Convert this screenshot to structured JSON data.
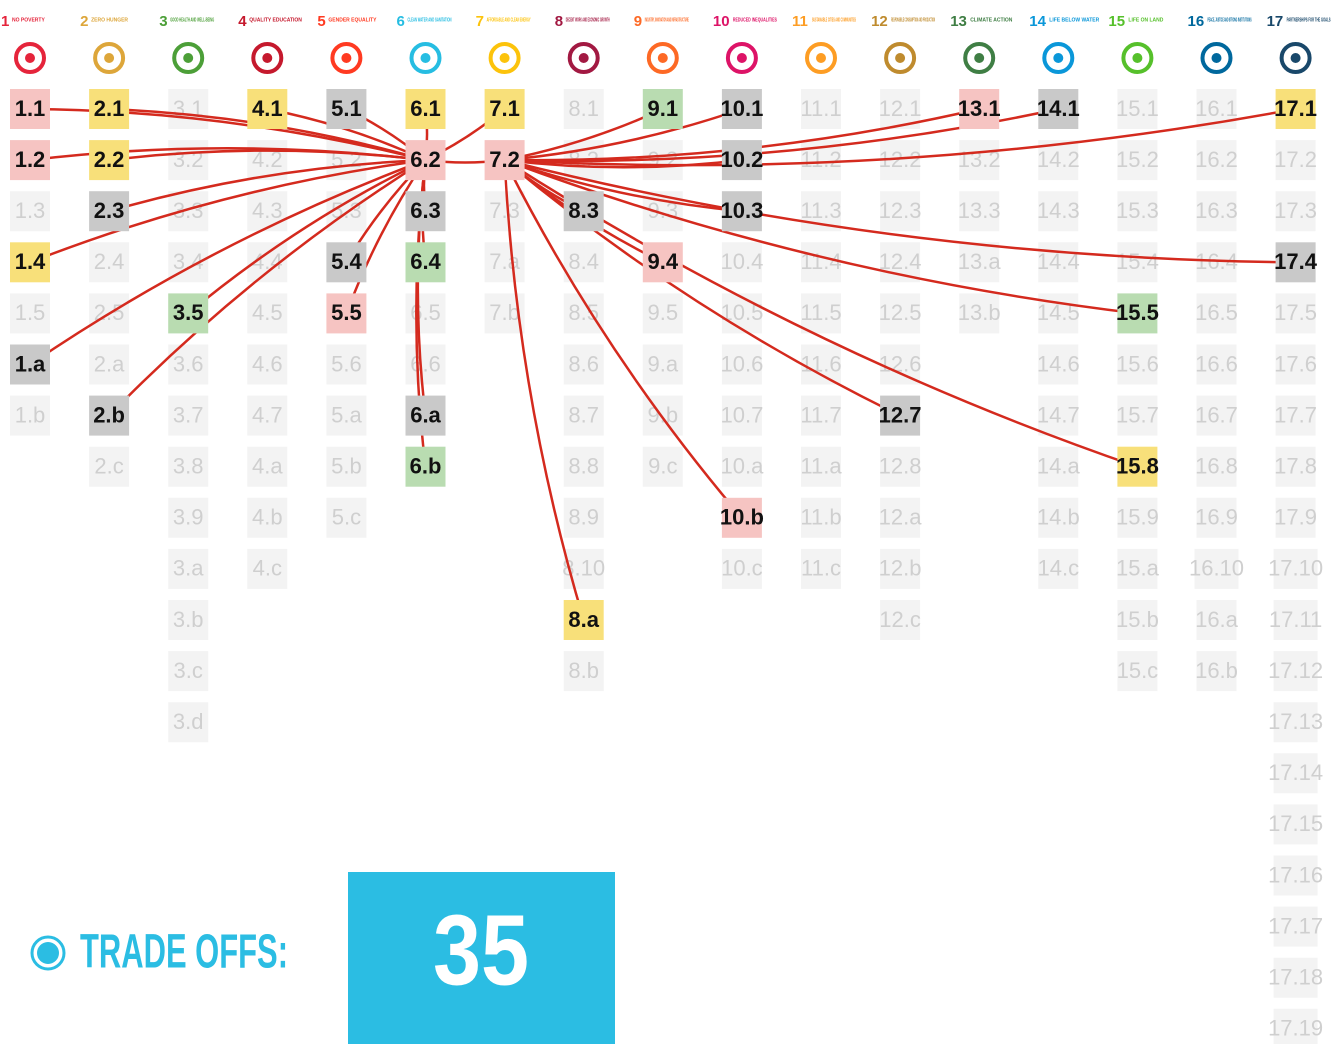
{
  "goals": [
    {
      "number": "1",
      "name": "NO POVERTY",
      "color": "#e5243b",
      "targets": [
        {
          "label": "1.1",
          "state": "red"
        },
        {
          "label": "1.2",
          "state": "red"
        },
        {
          "label": "1.3",
          "state": "faded"
        },
        {
          "label": "1.4",
          "state": "yellow"
        },
        {
          "label": "1.5",
          "state": "faded"
        },
        {
          "label": "1.a",
          "state": "gray"
        },
        {
          "label": "1.b",
          "state": "faded"
        }
      ]
    },
    {
      "number": "2",
      "name": "ZERO HUNGER",
      "color": "#dda63a",
      "targets": [
        {
          "label": "2.1",
          "state": "yellow"
        },
        {
          "label": "2.2",
          "state": "yellow"
        },
        {
          "label": "2.3",
          "state": "gray"
        },
        {
          "label": "2.4",
          "state": "faded"
        },
        {
          "label": "2.5",
          "state": "faded"
        },
        {
          "label": "2.a",
          "state": "faded"
        },
        {
          "label": "2.b",
          "state": "gray"
        },
        {
          "label": "2.c",
          "state": "faded"
        }
      ]
    },
    {
      "number": "3",
      "name": "GOOD HEALTH AND WELL-BEING",
      "color": "#4c9f38",
      "targets": [
        {
          "label": "3.1",
          "state": "faded"
        },
        {
          "label": "3.2",
          "state": "faded"
        },
        {
          "label": "3.3",
          "state": "faded"
        },
        {
          "label": "3.4",
          "state": "faded"
        },
        {
          "label": "3.5",
          "state": "green"
        },
        {
          "label": "3.6",
          "state": "faded"
        },
        {
          "label": "3.7",
          "state": "faded"
        },
        {
          "label": "3.8",
          "state": "faded"
        },
        {
          "label": "3.9",
          "state": "faded"
        },
        {
          "label": "3.a",
          "state": "faded"
        },
        {
          "label": "3.b",
          "state": "faded"
        },
        {
          "label": "3.c",
          "state": "faded"
        },
        {
          "label": "3.d",
          "state": "faded"
        }
      ]
    },
    {
      "number": "4",
      "name": "QUALITY EDUCATION",
      "color": "#c5192d",
      "targets": [
        {
          "label": "4.1",
          "state": "yellow"
        },
        {
          "label": "4.2",
          "state": "faded"
        },
        {
          "label": "4.3",
          "state": "faded"
        },
        {
          "label": "4.4",
          "state": "faded"
        },
        {
          "label": "4.5",
          "state": "faded"
        },
        {
          "label": "4.6",
          "state": "faded"
        },
        {
          "label": "4.7",
          "state": "faded"
        },
        {
          "label": "4.a",
          "state": "faded"
        },
        {
          "label": "4.b",
          "state": "faded"
        },
        {
          "label": "4.c",
          "state": "faded"
        }
      ]
    },
    {
      "number": "5",
      "name": "GENDER EQUALITY",
      "color": "#ff3a21",
      "targets": [
        {
          "label": "5.1",
          "state": "gray"
        },
        {
          "label": "5.2",
          "state": "faded"
        },
        {
          "label": "5.3",
          "state": "faded"
        },
        {
          "label": "5.4",
          "state": "gray"
        },
        {
          "label": "5.5",
          "state": "red"
        },
        {
          "label": "5.6",
          "state": "faded"
        },
        {
          "label": "5.a",
          "state": "faded"
        },
        {
          "label": "5.b",
          "state": "faded"
        },
        {
          "label": "5.c",
          "state": "faded"
        }
      ]
    },
    {
      "number": "6",
      "name": "CLEAN WATER AND SANITATION",
      "color": "#26bde2",
      "targets": [
        {
          "label": "6.1",
          "state": "yellow"
        },
        {
          "label": "6.2",
          "state": "red"
        },
        {
          "label": "6.3",
          "state": "gray"
        },
        {
          "label": "6.4",
          "state": "green"
        },
        {
          "label": "6.5",
          "state": "faded"
        },
        {
          "label": "6.6",
          "state": "faded"
        },
        {
          "label": "6.a",
          "state": "gray"
        },
        {
          "label": "6.b",
          "state": "green"
        }
      ]
    },
    {
      "number": "7",
      "name": "AFFORDABLE AND CLEAN ENERGY",
      "color": "#fcc30b",
      "targets": [
        {
          "label": "7.1",
          "state": "yellow"
        },
        {
          "label": "7.2",
          "state": "red"
        },
        {
          "label": "7.3",
          "state": "faded"
        },
        {
          "label": "7.a",
          "state": "faded"
        },
        {
          "label": "7.b",
          "state": "faded"
        }
      ]
    },
    {
      "number": "8",
      "name": "DECENT WORK AND ECONOMIC GROWTH",
      "color": "#a21942",
      "targets": [
        {
          "label": "8.1",
          "state": "faded"
        },
        {
          "label": "8.2",
          "state": "faded"
        },
        {
          "label": "8.3",
          "state": "gray"
        },
        {
          "label": "8.4",
          "state": "faded"
        },
        {
          "label": "8.5",
          "state": "faded"
        },
        {
          "label": "8.6",
          "state": "faded"
        },
        {
          "label": "8.7",
          "state": "faded"
        },
        {
          "label": "8.8",
          "state": "faded"
        },
        {
          "label": "8.9",
          "state": "faded"
        },
        {
          "label": "8.10",
          "state": "faded"
        },
        {
          "label": "8.a",
          "state": "yellow"
        },
        {
          "label": "8.b",
          "state": "faded"
        }
      ]
    },
    {
      "number": "9",
      "name": "INDUSTRY, INNOVATION AND INFRASTRUCTURE",
      "color": "#fd6925",
      "targets": [
        {
          "label": "9.1",
          "state": "green"
        },
        {
          "label": "9.2",
          "state": "faded"
        },
        {
          "label": "9.3",
          "state": "faded"
        },
        {
          "label": "9.4",
          "state": "red"
        },
        {
          "label": "9.5",
          "state": "faded"
        },
        {
          "label": "9.a",
          "state": "faded"
        },
        {
          "label": "9.b",
          "state": "faded"
        },
        {
          "label": "9.c",
          "state": "faded"
        }
      ]
    },
    {
      "number": "10",
      "name": "REDUCED INEQUALITIES",
      "color": "#dd1367",
      "targets": [
        {
          "label": "10.1",
          "state": "gray"
        },
        {
          "label": "10.2",
          "state": "gray"
        },
        {
          "label": "10.3",
          "state": "gray"
        },
        {
          "label": "10.4",
          "state": "faded"
        },
        {
          "label": "10.5",
          "state": "faded"
        },
        {
          "label": "10.6",
          "state": "faded"
        },
        {
          "label": "10.7",
          "state": "faded"
        },
        {
          "label": "10.a",
          "state": "faded"
        },
        {
          "label": "10.b",
          "state": "red"
        },
        {
          "label": "10.c",
          "state": "faded"
        }
      ]
    },
    {
      "number": "11",
      "name": "SUSTAINABLE CITIES AND COMMUNITIES",
      "color": "#fd9d24",
      "targets": [
        {
          "label": "11.1",
          "state": "faded"
        },
        {
          "label": "11.2",
          "state": "faded"
        },
        {
          "label": "11.3",
          "state": "faded"
        },
        {
          "label": "11.4",
          "state": "faded"
        },
        {
          "label": "11.5",
          "state": "faded"
        },
        {
          "label": "11.6",
          "state": "faded"
        },
        {
          "label": "11.7",
          "state": "faded"
        },
        {
          "label": "11.a",
          "state": "faded"
        },
        {
          "label": "11.b",
          "state": "faded"
        },
        {
          "label": "11.c",
          "state": "faded"
        }
      ]
    },
    {
      "number": "12",
      "name": "RESPONSIBLE CONSUMPTION AND PRODUCTION",
      "color": "#bf8b2e",
      "targets": [
        {
          "label": "12.1",
          "state": "faded"
        },
        {
          "label": "12.2",
          "state": "faded"
        },
        {
          "label": "12.3",
          "state": "faded"
        },
        {
          "label": "12.4",
          "state": "faded"
        },
        {
          "label": "12.5",
          "state": "faded"
        },
        {
          "label": "12.6",
          "state": "faded"
        },
        {
          "label": "12.7",
          "state": "gray"
        },
        {
          "label": "12.8",
          "state": "faded"
        },
        {
          "label": "12.a",
          "state": "faded"
        },
        {
          "label": "12.b",
          "state": "faded"
        },
        {
          "label": "12.c",
          "state": "faded"
        }
      ]
    },
    {
      "number": "13",
      "name": "CLIMATE ACTION",
      "color": "#3f7e44",
      "targets": [
        {
          "label": "13.1",
          "state": "red"
        },
        {
          "label": "13.2",
          "state": "faded"
        },
        {
          "label": "13.3",
          "state": "faded"
        },
        {
          "label": "13.a",
          "state": "faded"
        },
        {
          "label": "13.b",
          "state": "faded"
        }
      ]
    },
    {
      "number": "14",
      "name": "LIFE BELOW WATER",
      "color": "#0a97d9",
      "targets": [
        {
          "label": "14.1",
          "state": "gray"
        },
        {
          "label": "14.2",
          "state": "faded"
        },
        {
          "label": "14.3",
          "state": "faded"
        },
        {
          "label": "14.4",
          "state": "faded"
        },
        {
          "label": "14.5",
          "state": "faded"
        },
        {
          "label": "14.6",
          "state": "faded"
        },
        {
          "label": "14.7",
          "state": "faded"
        },
        {
          "label": "14.a",
          "state": "faded"
        },
        {
          "label": "14.b",
          "state": "faded"
        },
        {
          "label": "14.c",
          "state": "faded"
        }
      ]
    },
    {
      "number": "15",
      "name": "LIFE ON LAND",
      "color": "#56c02b",
      "targets": [
        {
          "label": "15.1",
          "state": "faded"
        },
        {
          "label": "15.2",
          "state": "faded"
        },
        {
          "label": "15.3",
          "state": "faded"
        },
        {
          "label": "15.4",
          "state": "faded"
        },
        {
          "label": "15.5",
          "state": "green"
        },
        {
          "label": "15.6",
          "state": "faded"
        },
        {
          "label": "15.7",
          "state": "faded"
        },
        {
          "label": "15.8",
          "state": "yellow"
        },
        {
          "label": "15.9",
          "state": "faded"
        },
        {
          "label": "15.a",
          "state": "faded"
        },
        {
          "label": "15.b",
          "state": "faded"
        },
        {
          "label": "15.c",
          "state": "faded"
        }
      ]
    },
    {
      "number": "16",
      "name": "PEACE, JUSTICE AND STRONG INSTITUTIONS",
      "color": "#00689d",
      "targets": [
        {
          "label": "16.1",
          "state": "faded"
        },
        {
          "label": "16.2",
          "state": "faded"
        },
        {
          "label": "16.3",
          "state": "faded"
        },
        {
          "label": "16.4",
          "state": "faded"
        },
        {
          "label": "16.5",
          "state": "faded"
        },
        {
          "label": "16.6",
          "state": "faded"
        },
        {
          "label": "16.7",
          "state": "faded"
        },
        {
          "label": "16.8",
          "state": "faded"
        },
        {
          "label": "16.9",
          "state": "faded"
        },
        {
          "label": "16.10",
          "state": "faded"
        },
        {
          "label": "16.a",
          "state": "faded"
        },
        {
          "label": "16.b",
          "state": "faded"
        }
      ]
    },
    {
      "number": "17",
      "name": "PARTNERSHIPS FOR THE GOALS",
      "color": "#19486a",
      "targets": [
        {
          "label": "17.1",
          "state": "yellow"
        },
        {
          "label": "17.2",
          "state": "faded"
        },
        {
          "label": "17.3",
          "state": "faded"
        },
        {
          "label": "17.4",
          "state": "gray"
        },
        {
          "label": "17.5",
          "state": "faded"
        },
        {
          "label": "17.6",
          "state": "faded"
        },
        {
          "label": "17.7",
          "state": "faded"
        },
        {
          "label": "17.8",
          "state": "faded"
        },
        {
          "label": "17.9",
          "state": "faded"
        },
        {
          "label": "17.10",
          "state": "faded"
        },
        {
          "label": "17.11",
          "state": "faded"
        },
        {
          "label": "17.12",
          "state": "faded"
        },
        {
          "label": "17.13",
          "state": "faded"
        },
        {
          "label": "17.14",
          "state": "faded"
        },
        {
          "label": "17.15",
          "state": "faded"
        },
        {
          "label": "17.16",
          "state": "faded"
        },
        {
          "label": "17.17",
          "state": "faded"
        },
        {
          "label": "17.18",
          "state": "faded"
        },
        {
          "label": "17.19",
          "state": "faded"
        }
      ]
    }
  ],
  "link_color": "#d42a1e",
  "links": [
    [
      "6.2",
      "1.1"
    ],
    [
      "6.2",
      "1.2"
    ],
    [
      "6.2",
      "1.4"
    ],
    [
      "6.2",
      "1.a"
    ],
    [
      "6.2",
      "2.1"
    ],
    [
      "6.2",
      "2.2"
    ],
    [
      "6.2",
      "2.3"
    ],
    [
      "6.2",
      "2.b"
    ],
    [
      "6.2",
      "3.5"
    ],
    [
      "6.2",
      "4.1"
    ],
    [
      "6.2",
      "5.1"
    ],
    [
      "6.2",
      "5.4"
    ],
    [
      "6.2",
      "5.5"
    ],
    [
      "6.2",
      "6.1"
    ],
    [
      "6.2",
      "6.3"
    ],
    [
      "6.2",
      "6.4"
    ],
    [
      "6.2",
      "6.a"
    ],
    [
      "6.2",
      "6.b"
    ],
    [
      "6.2",
      "7.1"
    ],
    [
      "6.2",
      "7.2"
    ],
    [
      "7.2",
      "8.3"
    ],
    [
      "7.2",
      "8.a"
    ],
    [
      "7.2",
      "9.1"
    ],
    [
      "7.2",
      "9.4"
    ],
    [
      "7.2",
      "10.1"
    ],
    [
      "7.2",
      "10.2"
    ],
    [
      "7.2",
      "10.3"
    ],
    [
      "7.2",
      "10.b"
    ],
    [
      "7.2",
      "12.7"
    ],
    [
      "7.2",
      "13.1"
    ],
    [
      "7.2",
      "14.1"
    ],
    [
      "7.2",
      "15.5"
    ],
    [
      "7.2",
      "15.8"
    ],
    [
      "7.2",
      "17.1"
    ],
    [
      "7.2",
      "17.4"
    ]
  ],
  "summary": {
    "label": "TRADE OFFS:",
    "count": 35,
    "color": "#2bbde3"
  }
}
